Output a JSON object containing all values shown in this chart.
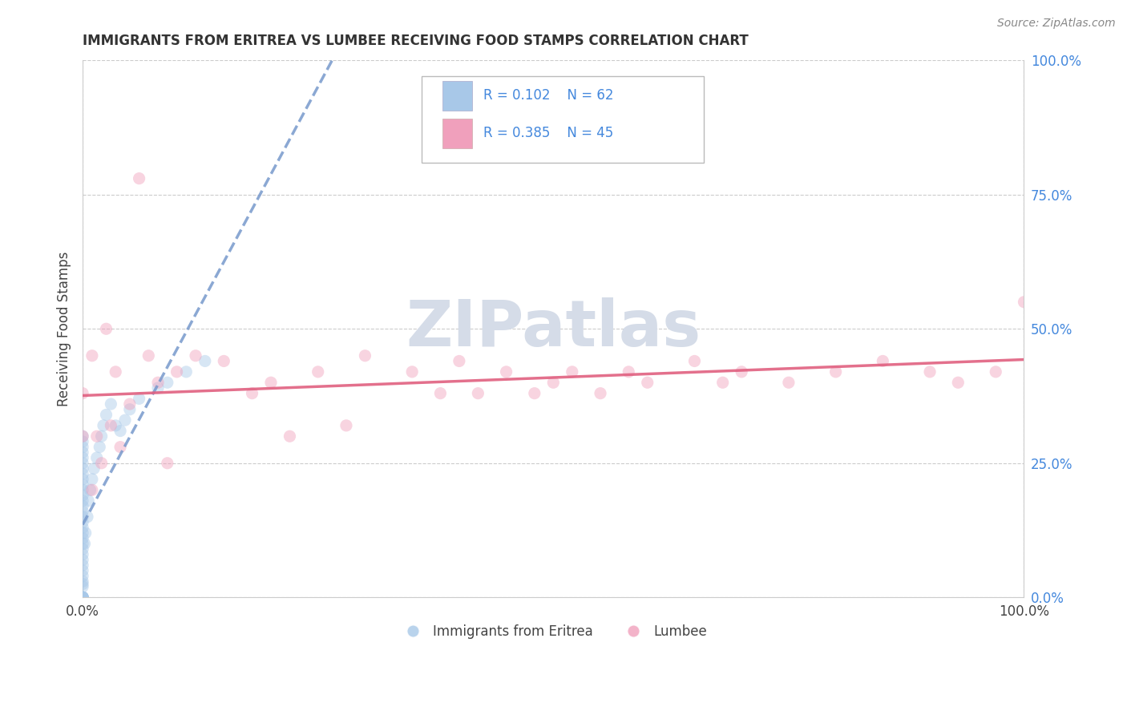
{
  "title": "IMMIGRANTS FROM ERITREA VS LUMBEE RECEIVING FOOD STAMPS CORRELATION CHART",
  "source": "Source: ZipAtlas.com",
  "ylabel": "Receiving Food Stamps",
  "xlim": [
    0,
    1
  ],
  "ylim": [
    0,
    1
  ],
  "ytick_labels": [
    "0.0%",
    "25.0%",
    "50.0%",
    "75.0%",
    "100.0%"
  ],
  "ytick_values": [
    0,
    0.25,
    0.5,
    0.75,
    1.0
  ],
  "xtick_labels": [
    "0.0%",
    "100.0%"
  ],
  "xtick_values": [
    0,
    1.0
  ],
  "legend_eritrea_R": "0.102",
  "legend_eritrea_N": "62",
  "legend_lumbee_R": "0.385",
  "legend_lumbee_N": "45",
  "color_eritrea": "#A8C8E8",
  "color_lumbee": "#F0A0BC",
  "color_eritrea_line": "#7799CC",
  "color_lumbee_line": "#E06080",
  "background_color": "#FFFFFF",
  "grid_color": "#CCCCCC",
  "legend_text_color": "#4488DD",
  "watermark_color": "#D5DCE8",
  "eritrea_x": [
    0.0,
    0.0,
    0.0,
    0.0,
    0.0,
    0.0,
    0.0,
    0.0,
    0.0,
    0.0,
    0.0,
    0.0,
    0.0,
    0.0,
    0.0,
    0.0,
    0.0,
    0.0,
    0.0,
    0.0,
    0.0,
    0.0,
    0.0,
    0.0,
    0.0,
    0.0,
    0.0,
    0.0,
    0.0,
    0.0,
    0.0,
    0.0,
    0.0,
    0.0,
    0.0,
    0.0,
    0.0,
    0.0,
    0.0,
    0.0,
    0.002,
    0.003,
    0.005,
    0.006,
    0.008,
    0.01,
    0.012,
    0.015,
    0.018,
    0.02,
    0.022,
    0.025,
    0.03,
    0.035,
    0.04,
    0.045,
    0.05,
    0.06,
    0.08,
    0.09,
    0.11,
    0.13
  ],
  "eritrea_y": [
    0.0,
    0.0,
    0.0,
    0.0,
    0.0,
    0.0,
    0.0,
    0.0,
    0.0,
    0.0,
    0.02,
    0.025,
    0.03,
    0.04,
    0.05,
    0.06,
    0.07,
    0.08,
    0.09,
    0.1,
    0.11,
    0.12,
    0.13,
    0.14,
    0.15,
    0.16,
    0.17,
    0.18,
    0.19,
    0.2,
    0.21,
    0.22,
    0.23,
    0.24,
    0.25,
    0.26,
    0.27,
    0.28,
    0.29,
    0.3,
    0.1,
    0.12,
    0.15,
    0.18,
    0.2,
    0.22,
    0.24,
    0.26,
    0.28,
    0.3,
    0.32,
    0.34,
    0.36,
    0.32,
    0.31,
    0.33,
    0.35,
    0.37,
    0.39,
    0.4,
    0.42,
    0.44
  ],
  "lumbee_x": [
    0.0,
    0.0,
    0.01,
    0.01,
    0.015,
    0.02,
    0.025,
    0.03,
    0.035,
    0.04,
    0.05,
    0.06,
    0.07,
    0.08,
    0.09,
    0.1,
    0.12,
    0.15,
    0.18,
    0.2,
    0.22,
    0.25,
    0.28,
    0.3,
    0.35,
    0.38,
    0.4,
    0.42,
    0.45,
    0.48,
    0.5,
    0.52,
    0.55,
    0.58,
    0.6,
    0.65,
    0.68,
    0.7,
    0.75,
    0.8,
    0.85,
    0.9,
    0.93,
    0.97,
    1.0
  ],
  "lumbee_y": [
    0.3,
    0.38,
    0.2,
    0.45,
    0.3,
    0.25,
    0.5,
    0.32,
    0.42,
    0.28,
    0.36,
    0.78,
    0.45,
    0.4,
    0.25,
    0.42,
    0.45,
    0.44,
    0.38,
    0.4,
    0.3,
    0.42,
    0.32,
    0.45,
    0.42,
    0.38,
    0.44,
    0.38,
    0.42,
    0.38,
    0.4,
    0.42,
    0.38,
    0.42,
    0.4,
    0.44,
    0.4,
    0.42,
    0.4,
    0.42,
    0.44,
    0.42,
    0.4,
    0.42,
    0.55
  ],
  "marker_size": 120,
  "marker_alpha": 0.45,
  "line_width": 2.5
}
